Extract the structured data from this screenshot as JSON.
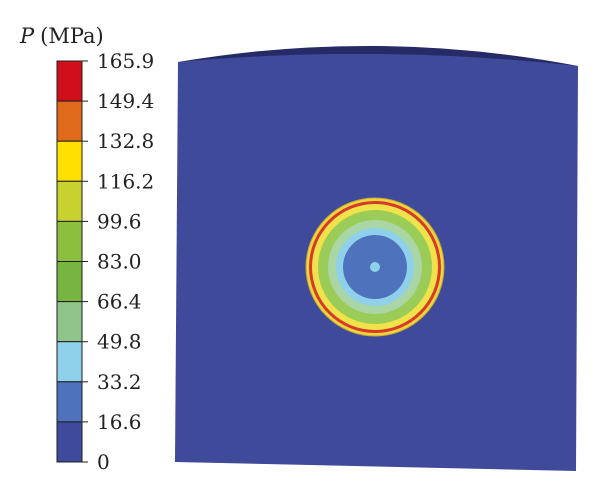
{
  "legend": {
    "symbol": "P",
    "unit": "(MPa)",
    "ticks": [
      "165.9",
      "149.4",
      "132.8",
      "116.2",
      "99.6",
      "83.0",
      "66.4",
      "49.8",
      "33.2",
      "16.6",
      "0"
    ],
    "bands": [
      {
        "color": "#d10f1a"
      },
      {
        "color": "#e06a1c"
      },
      {
        "color": "#ffe000"
      },
      {
        "color": "#c7d230"
      },
      {
        "color": "#8dbf3e"
      },
      {
        "color": "#78b540"
      },
      {
        "color": "#8fc48b"
      },
      {
        "color": "#8fd0ea"
      },
      {
        "color": "#4f72bd"
      },
      {
        "color": "#3e4a9b"
      }
    ]
  },
  "model": {
    "body_color": "#3f4a9a",
    "top_color": "#262a66",
    "zones": [
      {
        "name": "outer-ring",
        "color": "#f2d53a"
      },
      {
        "name": "red-rim",
        "color": "#d63a2a"
      },
      {
        "name": "yellow-band",
        "color": "#f0e24a"
      },
      {
        "name": "green-band",
        "color": "#9ccc58"
      },
      {
        "name": "light-green-band",
        "color": "#a9d6a4"
      },
      {
        "name": "light-blue-band",
        "color": "#8fd0ea"
      },
      {
        "name": "blue-core",
        "color": "#4f72bd"
      },
      {
        "name": "center-dot",
        "color": "#8fd0ea"
      }
    ]
  }
}
